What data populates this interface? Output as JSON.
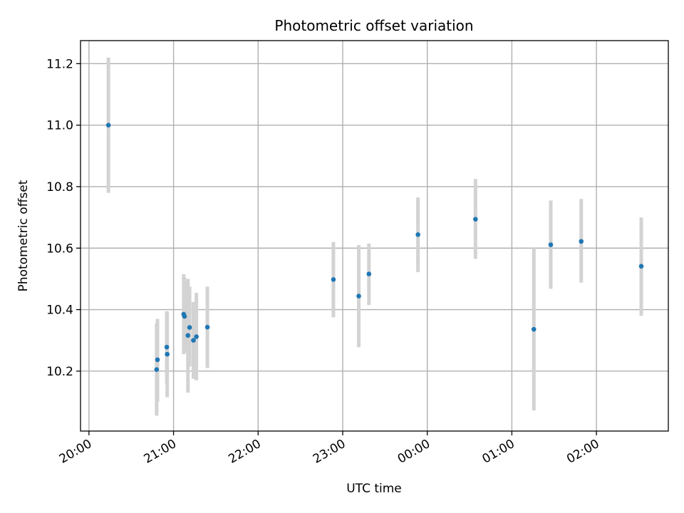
{
  "chart_data": {
    "type": "scatter",
    "title": "Photometric offset variation",
    "xlabel": "UTC time",
    "ylabel": "Photometric offset",
    "x_axis": {
      "unit": "hours since 20:00 UTC",
      "range": [
        -0.1,
        6.85
      ],
      "ticks": [
        {
          "value": 0,
          "label": "20:00"
        },
        {
          "value": 1,
          "label": "21:00"
        },
        {
          "value": 2,
          "label": "22:00"
        },
        {
          "value": 3,
          "label": "23:00"
        },
        {
          "value": 4,
          "label": "00:00"
        },
        {
          "value": 5,
          "label": "01:00"
        },
        {
          "value": 6,
          "label": "02:00"
        }
      ],
      "tick_label_rotation_deg": 30
    },
    "y_axis": {
      "range": [
        10.005,
        11.275
      ],
      "ticks": [
        {
          "value": 10.2,
          "label": "10.2"
        },
        {
          "value": 10.4,
          "label": "10.4"
        },
        {
          "value": 10.6,
          "label": "10.6"
        },
        {
          "value": 10.8,
          "label": "10.8"
        },
        {
          "value": 11.0,
          "label": "11.0"
        },
        {
          "value": 11.2,
          "label": "11.2"
        }
      ]
    },
    "grid": true,
    "marker_color": "#1f77b4",
    "errorbar_color": "#d3d3d3",
    "points": [
      {
        "t": "20:14",
        "x": 0.23,
        "y": 11.0,
        "low": 10.78,
        "high": 11.22
      },
      {
        "t": "20:48",
        "x": 0.8,
        "y": 10.205,
        "low": 10.055,
        "high": 10.355
      },
      {
        "t": "20:48",
        "x": 0.81,
        "y": 10.237,
        "low": 10.1,
        "high": 10.37
      },
      {
        "t": "20:55",
        "x": 0.92,
        "y": 10.278,
        "low": 10.16,
        "high": 10.395
      },
      {
        "t": "20:56",
        "x": 0.925,
        "y": 10.255,
        "low": 10.115,
        "high": 10.39
      },
      {
        "t": "21:07",
        "x": 1.12,
        "y": 10.385,
        "low": 10.255,
        "high": 10.515
      },
      {
        "t": "21:08",
        "x": 1.13,
        "y": 10.378,
        "low": 10.26,
        "high": 10.505
      },
      {
        "t": "21:10",
        "x": 1.17,
        "y": 10.316,
        "low": 10.13,
        "high": 10.5
      },
      {
        "t": "21:11",
        "x": 1.19,
        "y": 10.342,
        "low": 10.215,
        "high": 10.475
      },
      {
        "t": "21:14",
        "x": 1.235,
        "y": 10.3,
        "low": 10.175,
        "high": 10.425
      },
      {
        "t": "21:16",
        "x": 1.27,
        "y": 10.312,
        "low": 10.17,
        "high": 10.455
      },
      {
        "t": "21:24",
        "x": 1.4,
        "y": 10.343,
        "low": 10.21,
        "high": 10.475
      },
      {
        "t": "22:53",
        "x": 2.89,
        "y": 10.498,
        "low": 10.375,
        "high": 10.62
      },
      {
        "t": "23:12",
        "x": 3.19,
        "y": 10.444,
        "low": 10.278,
        "high": 10.61
      },
      {
        "t": "23:18",
        "x": 3.31,
        "y": 10.516,
        "low": 10.415,
        "high": 10.615
      },
      {
        "t": "23:53",
        "x": 3.89,
        "y": 10.644,
        "low": 10.522,
        "high": 10.765
      },
      {
        "t": "00:34",
        "x": 4.57,
        "y": 10.694,
        "low": 10.565,
        "high": 10.825
      },
      {
        "t": "01:15",
        "x": 5.26,
        "y": 10.336,
        "low": 10.072,
        "high": 10.6
      },
      {
        "t": "01:28",
        "x": 5.46,
        "y": 10.611,
        "low": 10.468,
        "high": 10.755
      },
      {
        "t": "01:49",
        "x": 5.82,
        "y": 10.622,
        "low": 10.488,
        "high": 10.76
      },
      {
        "t": "02:32",
        "x": 6.53,
        "y": 10.541,
        "low": 10.38,
        "high": 10.7
      }
    ]
  }
}
